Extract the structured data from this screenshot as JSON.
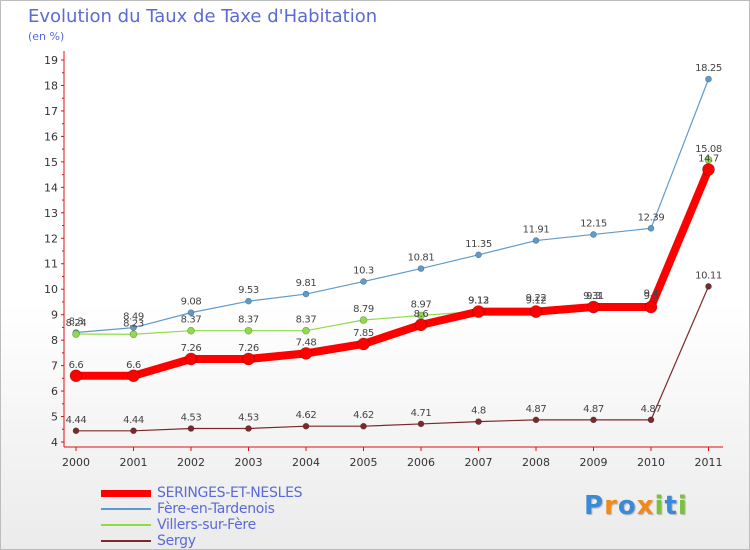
{
  "chart_data": {
    "type": "line",
    "title": "Evolution du Taux de Taxe d'Habitation",
    "subtitle": "(en %)",
    "x": [
      "2000",
      "2001",
      "2002",
      "2003",
      "2004",
      "2005",
      "2006",
      "2007",
      "2008",
      "2009",
      "2010",
      "2011"
    ],
    "y_ticks": [
      "4",
      "5",
      "6",
      "7",
      "8",
      "9",
      "10",
      "11",
      "12",
      "13",
      "14",
      "15",
      "16",
      "17",
      "18",
      "19"
    ],
    "ylim": [
      4,
      19
    ],
    "series": [
      {
        "name": "SERINGES-ET-NESLES",
        "color": "#ff0000",
        "values": [
          6.6,
          6.6,
          7.26,
          7.26,
          7.48,
          7.85,
          8.6,
          9.12,
          9.12,
          9.3,
          9.3,
          14.7
        ],
        "labels": [
          "6.6",
          "6.6",
          "7.26",
          "7.26",
          "7.48",
          "7.85",
          "8.6",
          "9.12",
          "9.12",
          "9.3",
          "9.3",
          "14.7"
        ]
      },
      {
        "name": "Fère-en-Tardenois",
        "color": "#5e9bcb",
        "values": [
          8.3,
          8.49,
          9.08,
          9.53,
          9.81,
          10.3,
          10.81,
          11.35,
          11.91,
          12.15,
          12.39,
          18.25
        ],
        "labels": [
          "8.3",
          "8.49",
          "9.08",
          "9.53",
          "9.81",
          "10.3",
          "10.81",
          "11.35",
          "11.91",
          "12.15",
          "12.39",
          "18.25"
        ]
      },
      {
        "name": "Villers-sur-Fère",
        "color": "#8fdc4a",
        "values": [
          8.24,
          8.23,
          8.37,
          8.37,
          8.37,
          8.79,
          8.97,
          9.13,
          9.22,
          9.31,
          9.4,
          15.08
        ],
        "labels": [
          "8.24",
          "8.23",
          "8.37",
          "8.37",
          "8.37",
          "8.79",
          "8.97",
          "9.13",
          "9.22",
          "9.31",
          "9.4",
          "15.08"
        ]
      },
      {
        "name": "Sergy",
        "color": "#7a2a2a",
        "values": [
          4.44,
          4.44,
          4.53,
          4.53,
          4.62,
          4.62,
          4.71,
          4.8,
          4.87,
          4.87,
          4.87,
          10.11
        ],
        "labels": [
          "4.44",
          "4.44",
          "4.53",
          "4.53",
          "4.62",
          "4.62",
          "4.71",
          "4.8",
          "4.87",
          "4.87",
          "4.87",
          "10.11"
        ]
      }
    ],
    "grid": false,
    "legend": "bottom-left"
  },
  "legend": {
    "items": [
      {
        "name": "SERINGES-ET-NESLES",
        "color": "#ff0000"
      },
      {
        "name": "Fère-en-Tardenois",
        "color": "#5e9bcb"
      },
      {
        "name": "Villers-sur-Fère",
        "color": "#8fdc4a"
      },
      {
        "name": "Sergy",
        "color": "#7a2a2a"
      }
    ]
  },
  "logo": {
    "letters": [
      "P",
      "r",
      "o",
      "x",
      "i",
      "t",
      "i"
    ],
    "colors": [
      "#3a8ad8",
      "#f08a1a",
      "#3a8ad8",
      "#f08a1a",
      "#7ac23a",
      "#3a8ad8",
      "#7ac23a"
    ]
  }
}
